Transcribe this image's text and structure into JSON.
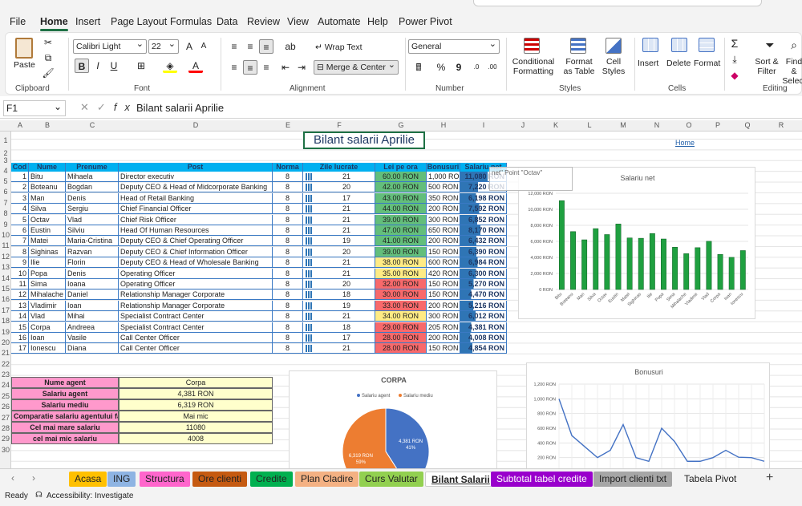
{
  "ribbon": {
    "tabs": [
      "File",
      "Home",
      "Insert",
      "Page Layout",
      "Formulas",
      "Data",
      "Review",
      "View",
      "Automate",
      "Help",
      "Power Pivot"
    ],
    "clipboard": {
      "paste": "Paste",
      "label": "Clipboard"
    },
    "font": {
      "name": "Calibri Light",
      "size": "22",
      "label": "Font"
    },
    "alignment": {
      "wrap": "Wrap Text",
      "merge": "Merge & Center",
      "label": "Alignment"
    },
    "number": {
      "format": "General",
      "label": "Number"
    },
    "styles": {
      "cond": "Conditional Formatting",
      "table": "Format as Table",
      "cell": "Cell Styles",
      "label": "Styles"
    },
    "cells": {
      "insert": "Insert",
      "delete": "Delete",
      "format": "Format",
      "label": "Cells"
    },
    "editing": {
      "sort": "Sort & Filter",
      "find": "Find & Select",
      "label": "Editing"
    }
  },
  "formula_bar": {
    "cell_ref": "F1",
    "content": "Bilant salarii Aprilie"
  },
  "columns": [
    "A",
    "B",
    "C",
    "D",
    "E",
    "F",
    "G",
    "H",
    "I",
    "J",
    "K",
    "L",
    "M",
    "N",
    "O",
    "P",
    "Q",
    "R",
    "S"
  ],
  "rows": [
    "1",
    "2",
    "3",
    "4",
    "5",
    "6",
    "7",
    "8",
    "9",
    "10",
    "11",
    "12",
    "13",
    "14",
    "15",
    "16",
    "17",
    "18",
    "19",
    "20",
    "21",
    "22",
    "23",
    "24",
    "25",
    "26",
    "27",
    "28",
    "29",
    "30"
  ],
  "sheet": {
    "title": "Bilant salarii Aprilie",
    "home_link": "Home",
    "headers": [
      "Cod",
      "Nume",
      "Prenume",
      "Post",
      "Norma",
      "Zile lucrate",
      "Lei pe ora",
      "Bonusuri",
      "Salariu net"
    ],
    "employees": [
      [
        "1",
        "Bitu",
        "Mihaela",
        "Director executiv",
        "8",
        "21",
        "60.00 RON",
        "1,000 RON",
        "11,080 RON"
      ],
      [
        "2",
        "Boteanu",
        "Bogdan",
        "Deputy CEO & Head of Midcorporate Banking",
        "8",
        "20",
        "42.00 RON",
        "500 RON",
        "7,220 RON"
      ],
      [
        "3",
        "Man",
        "Denis",
        "Head of Retail Banking",
        "8",
        "17",
        "43.00 RON",
        "350 RON",
        "6,198 RON"
      ],
      [
        "4",
        "Silva",
        "Sergiu",
        "Chief Financial Officer",
        "8",
        "21",
        "44.00 RON",
        "200 RON",
        "7,592 RON"
      ],
      [
        "5",
        "Octav",
        "Vlad",
        "Chief Risk Officer",
        "8",
        "21",
        "39.00 RON",
        "300 RON",
        "6,852 RON"
      ],
      [
        "6",
        "Eustin",
        "Silviu",
        "Head Of Human Resources",
        "8",
        "21",
        "47.00 RON",
        "650 RON",
        "8,170 RON"
      ],
      [
        "7",
        "Matei",
        "Maria-Cristina",
        "Deputy CEO & Chief Operating Officer",
        "8",
        "19",
        "41.00 RON",
        "200 RON",
        "6,432 RON"
      ],
      [
        "8",
        "Sighinas",
        "Razvan",
        "Deputy CEO & Chief Information Officer",
        "8",
        "20",
        "39.00 RON",
        "150 RON",
        "6,390 RON"
      ],
      [
        "9",
        "Ilie",
        "Florin",
        "Deputy CEO & Head of Wholesale Banking",
        "8",
        "21",
        "38.00 RON",
        "600 RON",
        "6,984 RON"
      ],
      [
        "10",
        "Popa",
        "Denis",
        "Operating Officer",
        "8",
        "21",
        "35.00 RON",
        "420 RON",
        "6,300 RON"
      ],
      [
        "11",
        "Sima",
        "Ioana",
        "Operating Officer",
        "8",
        "20",
        "32.00 RON",
        "150 RON",
        "5,270 RON"
      ],
      [
        "12",
        "Mihalache",
        "Daniel",
        "Relationship Manager Corporate",
        "8",
        "18",
        "30.00 RON",
        "150 RON",
        "4,470 RON"
      ],
      [
        "13",
        "Vladimir",
        "Ioan",
        "Relationship Manager Corporate",
        "8",
        "19",
        "33.00 RON",
        "200 RON",
        "5,216 RON"
      ],
      [
        "14",
        "Vlad",
        "Mihai",
        "Specialist Contract Center",
        "8",
        "21",
        "34.00 RON",
        "300 RON",
        "6,012 RON"
      ],
      [
        "15",
        "Corpa",
        "Andreea",
        "Specialist Contract Center",
        "8",
        "18",
        "29.00 RON",
        "205 RON",
        "4,381 RON"
      ],
      [
        "16",
        "Ioan",
        "Vasile",
        "Call Center Officer",
        "8",
        "17",
        "28.00 RON",
        "200 RON",
        "4,008 RON"
      ],
      [
        "17",
        "Ionescu",
        "Diana",
        "Call Center Officer",
        "8",
        "21",
        "28.00 RON",
        "150 RON",
        "4,854 RON"
      ]
    ],
    "tooltip": "net\" Point \"Octav\"",
    "summary": [
      [
        "Nume agent",
        "Corpa"
      ],
      [
        "Salariu agent",
        "4,381 RON"
      ],
      [
        "Salariu mediu",
        "6,319 RON"
      ],
      [
        "Comparatie salariu agentului fata de",
        "Mai mic"
      ],
      [
        "Cel mai mare salariu",
        "11080"
      ],
      [
        "cel mai mic salariu",
        "4008"
      ]
    ]
  },
  "colors": {
    "green": "#63be7b",
    "yellow": "#ffeb84",
    "red": "#f8696b",
    "header": "#00b0f0",
    "pink": "#ff99cc",
    "cream": "#ffffcc"
  },
  "chart_data": [
    {
      "type": "bar",
      "title": "Salariu net",
      "categories": [
        "Bitu",
        "Boteanu",
        "Man",
        "Silva",
        "Octav",
        "Eustin",
        "Matei",
        "Sighinas",
        "Ilie",
        "Popa",
        "Sima",
        "Mihalache",
        "Vladimir",
        "Vlad",
        "Corpa",
        "Ioan",
        "Ionescu"
      ],
      "values": [
        11080,
        7220,
        6198,
        7592,
        6852,
        8170,
        6432,
        6390,
        6984,
        6300,
        5270,
        4470,
        5216,
        6012,
        4381,
        4008,
        4854
      ],
      "yticks": [
        "12,000 RON",
        "10,000 RON",
        "8,000 RON",
        "6,000 RON",
        "4,000 RON",
        "2,000 RON",
        "0 RON"
      ],
      "ylim": [
        0,
        12000
      ]
    },
    {
      "type": "pie",
      "title": "CORPA",
      "series": [
        {
          "name": "Salariu agent",
          "value": 4381,
          "label": "4,381 RON",
          "pct": "41%",
          "color": "#4472c4"
        },
        {
          "name": "Salariu mediu",
          "value": 6319,
          "label": "6,319 RON",
          "pct": "59%",
          "color": "#ed7d31"
        }
      ]
    },
    {
      "type": "line",
      "title": "Bonusuri",
      "values": [
        1000,
        500,
        350,
        200,
        300,
        650,
        200,
        150,
        600,
        420,
        150,
        150,
        200,
        300,
        205,
        200,
        150
      ],
      "yticks": [
        "1,200 RON",
        "1,000 RON",
        "800 RON",
        "600 RON",
        "400 RON",
        "200 RON"
      ],
      "ylim": [
        0,
        1200
      ]
    }
  ],
  "sheet_tabs": [
    {
      "name": "Acasa",
      "color": "#ffc000"
    },
    {
      "name": "ING",
      "color": "#8eb4e3"
    },
    {
      "name": "Structura",
      "color": "#ff66cc"
    },
    {
      "name": "Ore clienti",
      "color": "#c55a11"
    },
    {
      "name": "Credite",
      "color": "#00b050"
    },
    {
      "name": "Plan Cladire",
      "color": "#f4b183"
    },
    {
      "name": "Curs Valutar",
      "color": "#92d050"
    },
    {
      "name": "Bilant Salarii",
      "color": "#ffffff",
      "active": true
    },
    {
      "name": "Subtotal tabel credite",
      "color": "#9900cc"
    },
    {
      "name": "Import clienti txt",
      "color": "#a6a6a6"
    },
    {
      "name": "Tabela Pivot",
      "color": "#f3f3f3"
    }
  ],
  "status": {
    "ready": "Ready",
    "accessibility": "Accessibility: Investigate"
  }
}
